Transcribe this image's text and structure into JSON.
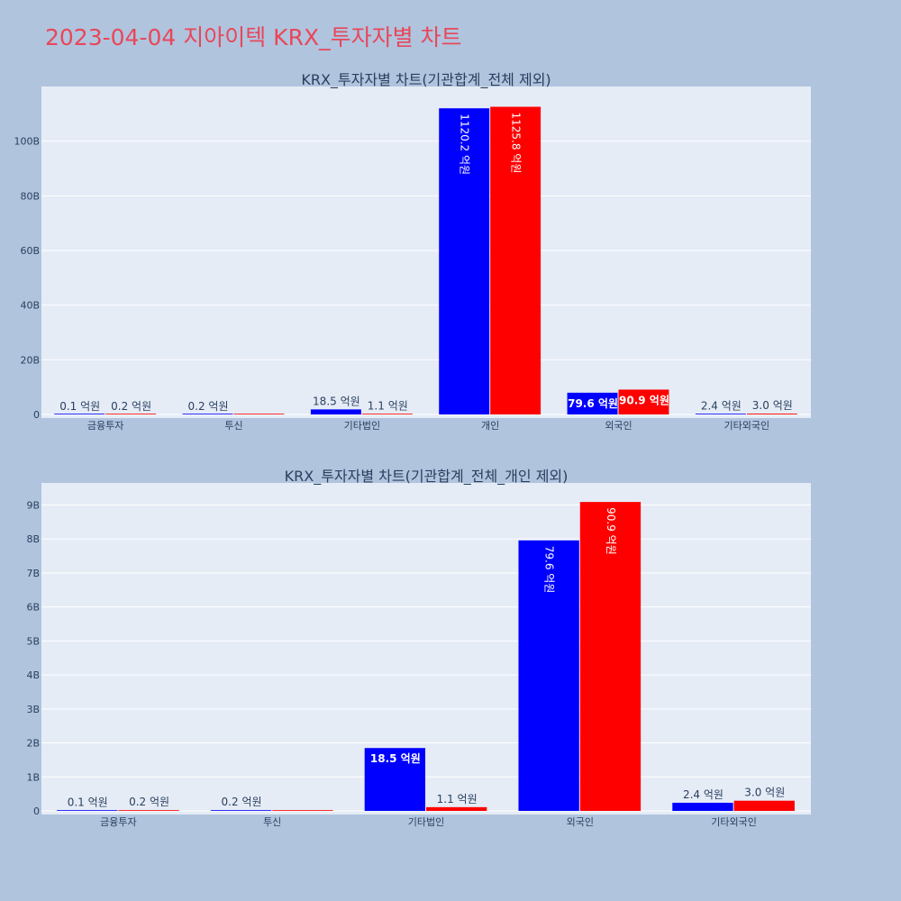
{
  "page_title": "2023-04-04 지아이텍 KRX_투자자별 차트",
  "colors": {
    "background": "#b0c4de",
    "plot_bg": "#e5ecf6",
    "series_a": "#0000ff",
    "series_b": "#ff0000",
    "title": "#e8475a"
  },
  "chart_data": [
    {
      "type": "bar",
      "title": "KRX_투자자별 차트(기관합계_전체 제외)",
      "categories": [
        "금융투자",
        "투신",
        "기타법인",
        "개인",
        "외국인",
        "기타외국인"
      ],
      "series": [
        {
          "color": "#0000ff",
          "values": [
            0.1,
            0.2,
            18.5,
            1120.2,
            79.6,
            2.4
          ],
          "labels": [
            "0.1 억원",
            "0.2 억원",
            "18.5 억원",
            "1120.2 억원",
            "79.6 억원",
            "2.4 억원"
          ]
        },
        {
          "color": "#ff0000",
          "values": [
            0.2,
            0,
            1.1,
            1125.8,
            90.9,
            3.0
          ],
          "labels": [
            "0.2 억원",
            "",
            "1.1 억원",
            "1125.8 억원",
            "90.9 억원",
            "3.0 억원"
          ]
        }
      ],
      "ylim": [
        0,
        1200
      ],
      "yticks": [
        0,
        200,
        400,
        600,
        800,
        1000
      ],
      "ytick_labels": [
        "0",
        "20B",
        "40B",
        "60B",
        "80B",
        "100B"
      ],
      "grid": true
    },
    {
      "type": "bar",
      "title": "KRX_투자자별 차트(기관합계_전체_개인 제외)",
      "categories": [
        "금융투자",
        "투신",
        "기타법인",
        "외국인",
        "기타외국인"
      ],
      "series": [
        {
          "color": "#0000ff",
          "values": [
            0.1,
            0.2,
            18.5,
            79.6,
            2.4
          ],
          "labels": [
            "0.1 억원",
            "0.2 억원",
            "18.5 억원",
            "79.6 억원",
            "2.4 억원"
          ]
        },
        {
          "color": "#ff0000",
          "values": [
            0.2,
            0,
            1.1,
            90.9,
            3.0
          ],
          "labels": [
            "0.2 억원",
            "",
            "1.1 억원",
            "90.9 억원",
            "3.0 억원"
          ]
        }
      ],
      "ylim": [
        0,
        96.5
      ],
      "yticks": [
        0,
        10,
        20,
        30,
        40,
        50,
        60,
        70,
        80,
        90
      ],
      "ytick_labels": [
        "0",
        "1B",
        "2B",
        "3B",
        "4B",
        "5B",
        "6B",
        "7B",
        "8B",
        "9B"
      ],
      "grid": true
    }
  ]
}
